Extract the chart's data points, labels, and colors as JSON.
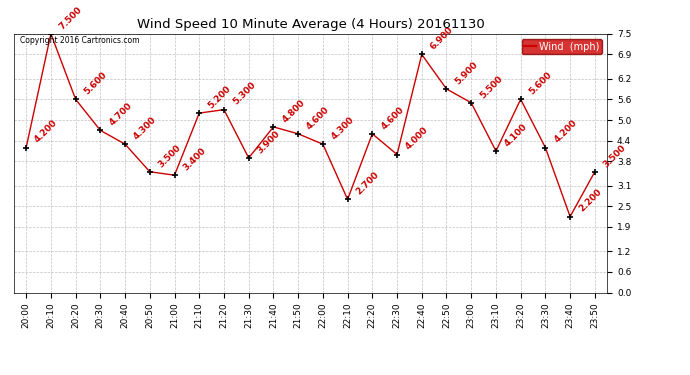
{
  "title": "Wind Speed 10 Minute Average (4 Hours) 20161130",
  "times": [
    "20:00",
    "20:10",
    "20:20",
    "20:30",
    "20:40",
    "20:50",
    "21:00",
    "21:10",
    "21:20",
    "21:30",
    "21:40",
    "21:50",
    "22:00",
    "22:10",
    "22:20",
    "22:30",
    "22:40",
    "22:50",
    "23:00",
    "23:10",
    "23:20",
    "23:30",
    "23:40",
    "23:50"
  ],
  "values": [
    4.2,
    7.5,
    5.6,
    4.7,
    4.3,
    3.5,
    3.4,
    5.2,
    5.3,
    3.9,
    4.8,
    4.6,
    4.3,
    2.7,
    4.6,
    4.0,
    6.9,
    5.9,
    5.5,
    4.1,
    5.6,
    4.2,
    2.2,
    3.5
  ],
  "labels": [
    "4.200",
    "7.500",
    "5.600",
    "4.700",
    "4.300",
    "3.500",
    "3.400",
    "5.200",
    "5.300",
    "3.900",
    "4.800",
    "4.600",
    "4.300",
    "2.700",
    "4.600",
    "4.000",
    "6.900",
    "5.900",
    "5.500",
    "4.100",
    "5.600",
    "4.200",
    "2.200",
    "3.500"
  ],
  "line_color": "#cc0000",
  "marker_color": "#000000",
  "label_color": "#cc0000",
  "legend_label": "Wind  (mph)",
  "legend_bg": "#cc0000",
  "legend_text_color": "#ffffff",
  "copyright_text": "Copyright 2016 Cartronics.com",
  "ylim": [
    0.0,
    7.5
  ],
  "yticks": [
    0.0,
    0.6,
    1.2,
    1.9,
    2.5,
    3.1,
    3.8,
    4.4,
    5.0,
    5.6,
    6.2,
    6.9,
    7.5
  ],
  "bg_color": "#ffffff",
  "grid_color": "#bbbbbb",
  "title_fontsize": 9.5,
  "label_fontsize": 6.5,
  "tick_fontsize": 6.5
}
